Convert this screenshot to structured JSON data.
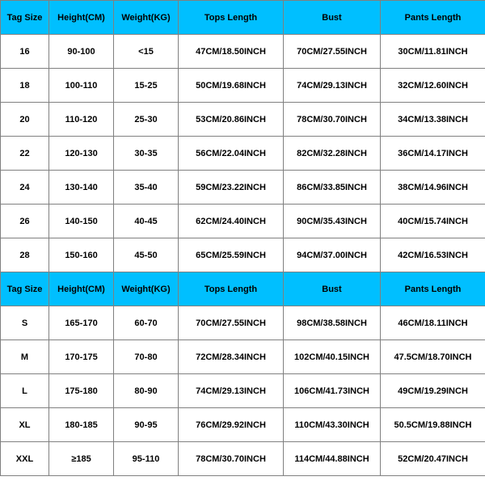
{
  "header_bg": "#00bfff",
  "border_color": "#808080",
  "text_color": "#000000",
  "font_size_header": 11,
  "font_size_cell": 11,
  "columns": [
    "Tag Size",
    "Height(CM)",
    "Weight(KG)",
    "Tops Length",
    "Bust",
    "Pants Length"
  ],
  "section1": {
    "rows": [
      [
        "16",
        "90-100",
        "<15",
        "47CM/18.50INCH",
        "70CM/27.55INCH",
        "30CM/11.81INCH"
      ],
      [
        "18",
        "100-110",
        "15-25",
        "50CM/19.68INCH",
        "74CM/29.13INCH",
        "32CM/12.60INCH"
      ],
      [
        "20",
        "110-120",
        "25-30",
        "53CM/20.86INCH",
        "78CM/30.70INCH",
        "34CM/13.38INCH"
      ],
      [
        "22",
        "120-130",
        "30-35",
        "56CM/22.04INCH",
        "82CM/32.28INCH",
        "36CM/14.17INCH"
      ],
      [
        "24",
        "130-140",
        "35-40",
        "59CM/23.22INCH",
        "86CM/33.85INCH",
        "38CM/14.96INCH"
      ],
      [
        "26",
        "140-150",
        "40-45",
        "62CM/24.40INCH",
        "90CM/35.43INCH",
        "40CM/15.74INCH"
      ],
      [
        "28",
        "150-160",
        "45-50",
        "65CM/25.59INCH",
        "94CM/37.00INCH",
        "42CM/16.53INCH"
      ]
    ]
  },
  "section2": {
    "rows": [
      [
        "S",
        "165-170",
        "60-70",
        "70CM/27.55INCH",
        "98CM/38.58INCH",
        "46CM/18.11INCH"
      ],
      [
        "M",
        "170-175",
        "70-80",
        "72CM/28.34INCH",
        "102CM/40.15INCH",
        "47.5CM/18.70INCH"
      ],
      [
        "L",
        "175-180",
        "80-90",
        "74CM/29.13INCH",
        "106CM/41.73INCH",
        "49CM/19.29INCH"
      ],
      [
        "XL",
        "180-185",
        "90-95",
        "76CM/29.92INCH",
        "110CM/43.30INCH",
        "50.5CM/19.88INCH"
      ],
      [
        "XXL",
        "≥185",
        "95-110",
        "78CM/30.70INCH",
        "114CM/44.88INCH",
        "52CM/20.47INCH"
      ]
    ]
  }
}
